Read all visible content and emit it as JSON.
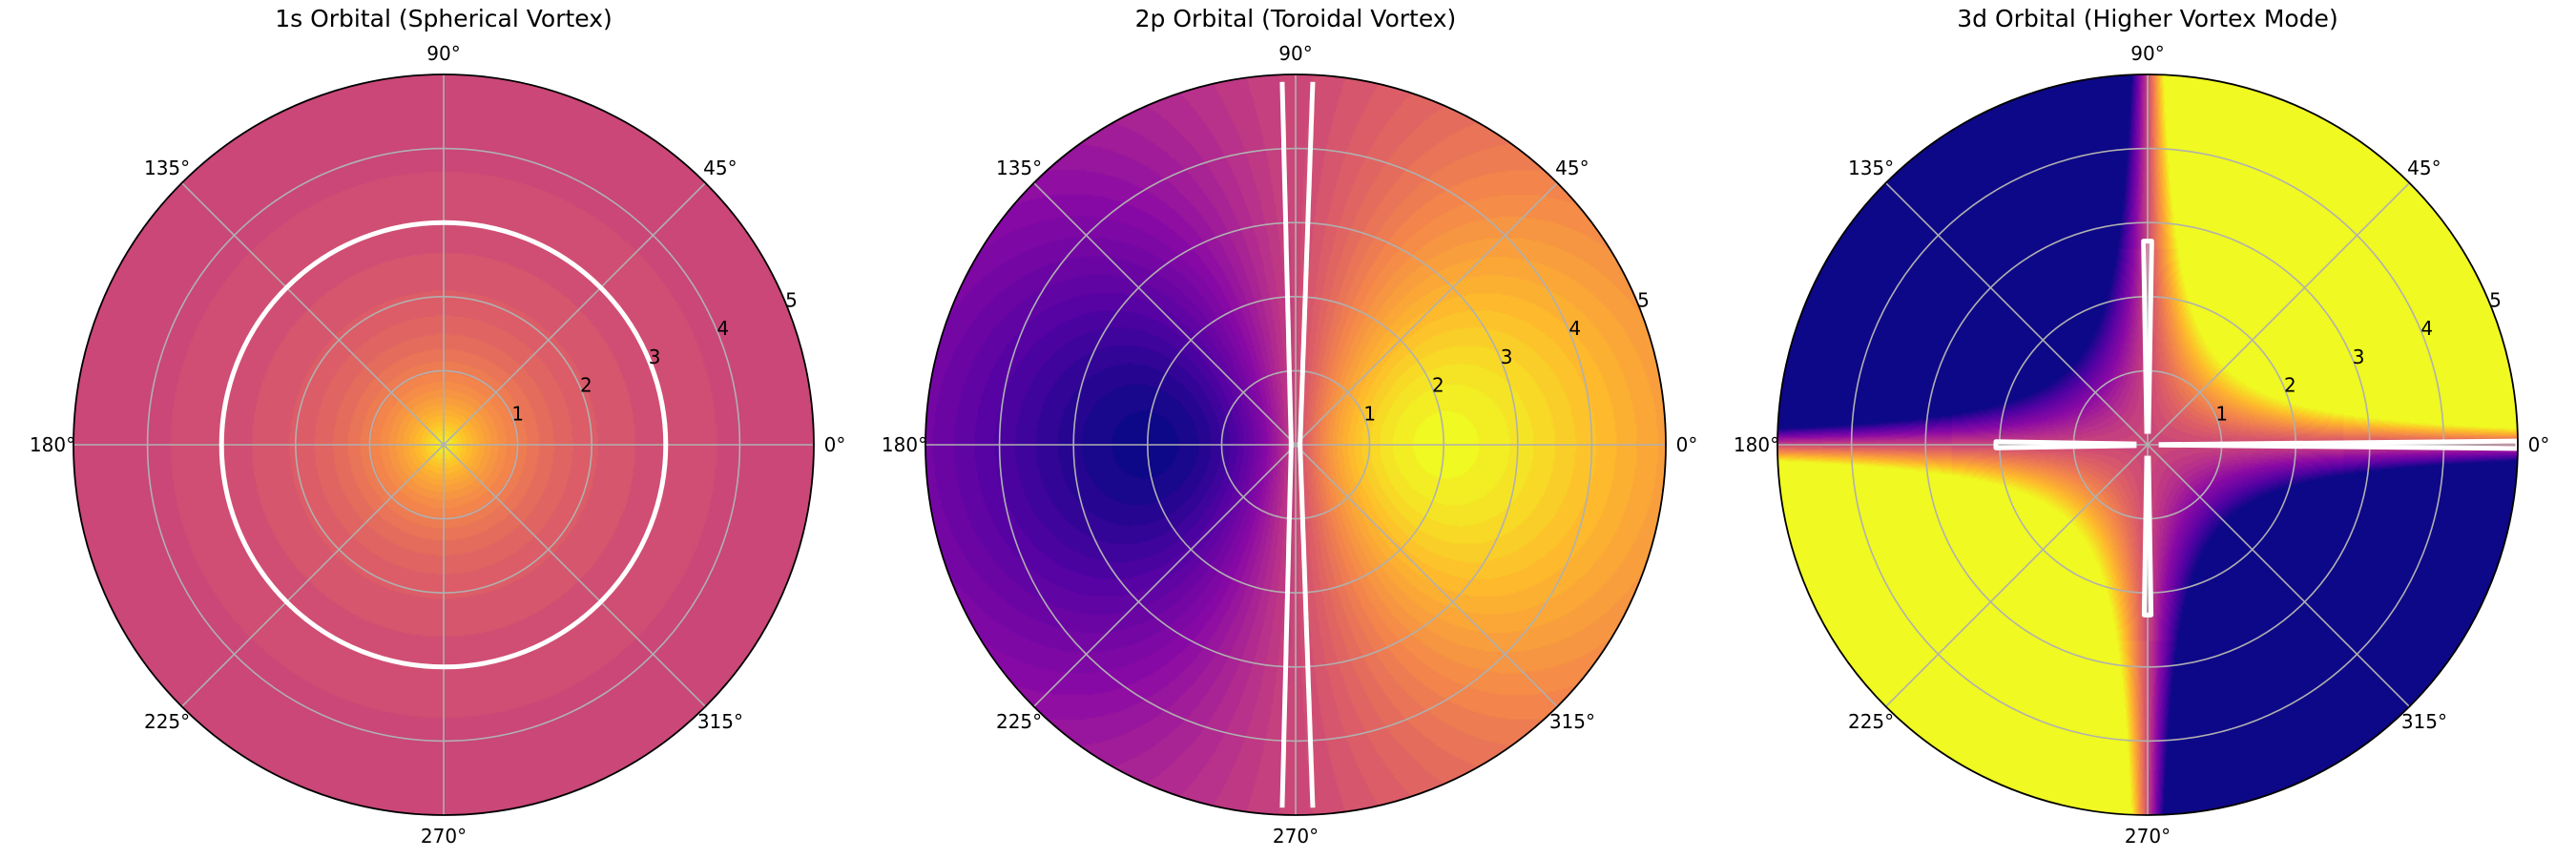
{
  "chart_data": [
    {
      "type": "polar-contour",
      "title": "1s Orbital (Spherical Vortex)",
      "colormap": "plasma",
      "field": "1s",
      "r_range": [
        0,
        5
      ],
      "r_ticks": [
        "1",
        "2",
        "3",
        "4",
        "5"
      ],
      "angle_ticks": [
        "0°",
        "45°",
        "90°",
        "135°",
        "180°",
        "225°",
        "270°",
        "315°"
      ],
      "contour_radius": 3,
      "grid": true
    },
    {
      "type": "polar-contour",
      "title": "2p Orbital (Toroidal Vortex)",
      "colormap": "plasma",
      "field": "2p",
      "r_range": [
        0,
        5
      ],
      "r_ticks": [
        "1",
        "2",
        "3",
        "4",
        "5"
      ],
      "angle_ticks": [
        "0°",
        "45°",
        "90°",
        "135°",
        "180°",
        "225°",
        "270°",
        "315°"
      ],
      "grid": true
    },
    {
      "type": "polar-contour",
      "title": "3d Orbital (Higher Vortex Mode)",
      "colormap": "plasma",
      "field": "3d",
      "r_range": [
        0,
        5
      ],
      "r_ticks": [
        "1",
        "2",
        "3",
        "4",
        "5"
      ],
      "angle_ticks": [
        "0°",
        "45°",
        "90°",
        "135°",
        "180°",
        "225°",
        "270°",
        "315°"
      ],
      "grid": true
    }
  ]
}
